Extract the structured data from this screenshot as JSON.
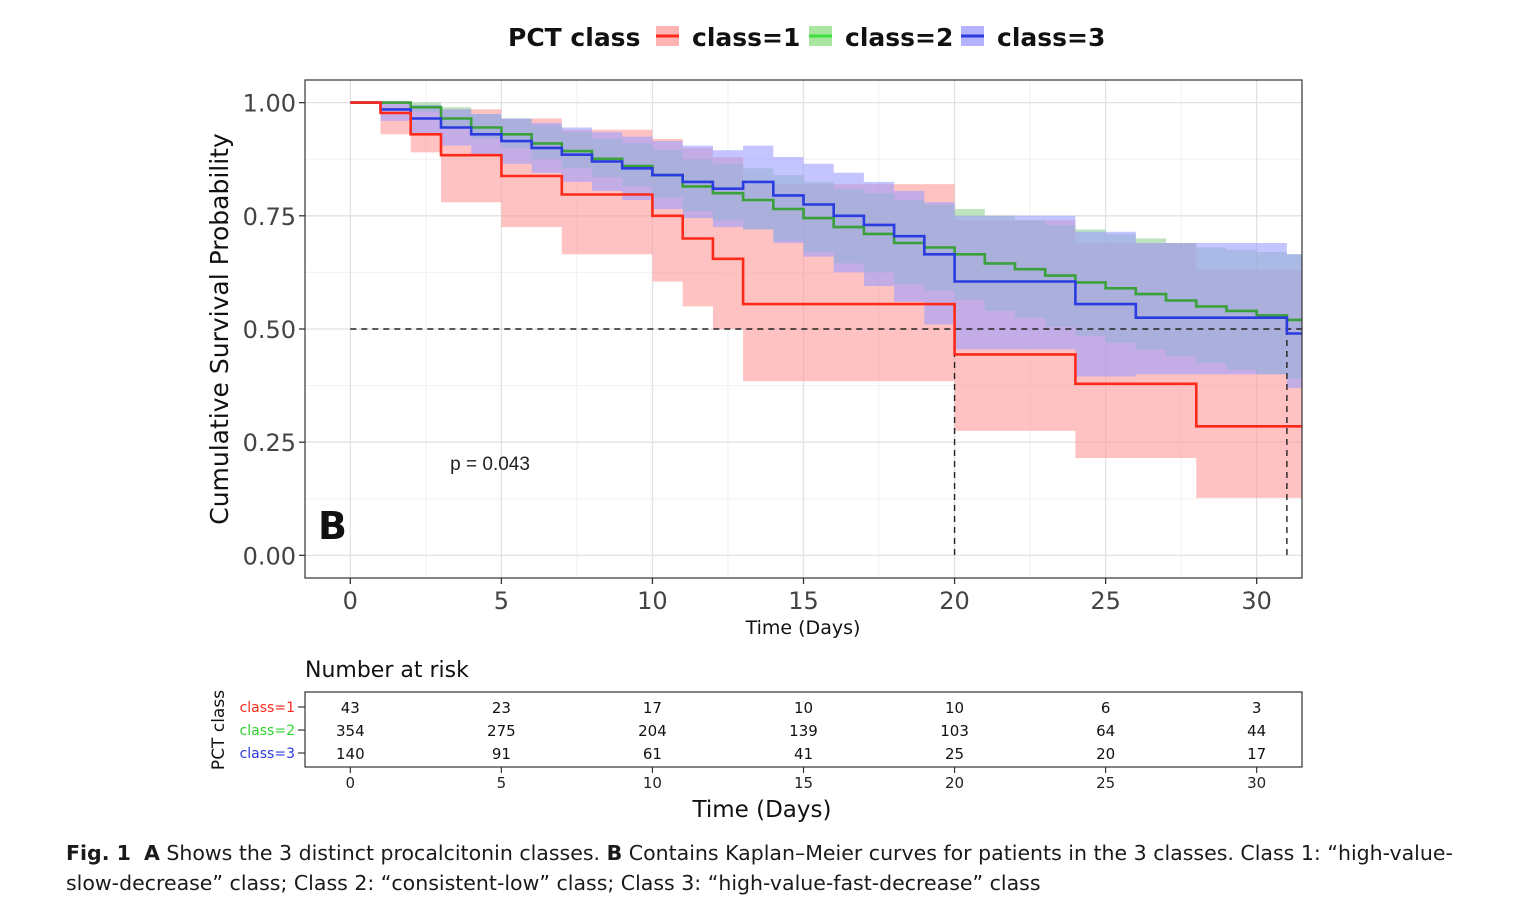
{
  "chart_data": {
    "type": "line",
    "subtype": "kaplan-meier",
    "panel_label": "B",
    "legend": {
      "title": "PCT class",
      "position": "top",
      "entries": [
        {
          "name": "class=1",
          "color": "#ff2a1a"
        },
        {
          "name": "class=2",
          "color": "#3aa03a"
        },
        {
          "name": "class=3",
          "color": "#2a3be0"
        }
      ]
    },
    "xlabel": "Time (Days)",
    "ylabel": "Cumulative Survival Probability",
    "xlim": [
      -1.5,
      31.5
    ],
    "ylim": [
      -0.05,
      1.05
    ],
    "xticks": [
      0,
      5,
      10,
      15,
      20,
      25,
      30
    ],
    "yticks": [
      0,
      0.25,
      0.5,
      0.75,
      1.0
    ],
    "ytick_labels": [
      "0.00",
      "0.25",
      "0.50",
      "0.75",
      "1.00"
    ],
    "grid": true,
    "annotation": "p = 0.043",
    "annotation_at": {
      "x": 4,
      "y": 0.2
    },
    "median_line": {
      "y": 0.5,
      "x_end": 31.5,
      "drops": [
        20,
        31
      ]
    },
    "series": [
      {
        "name": "class=1",
        "color": "#ff2a1a",
        "fill": "#ff9a9a",
        "x": [
          0,
          1,
          2,
          3,
          5,
          7,
          10,
          11,
          12,
          13,
          20,
          24,
          28,
          31.5
        ],
        "y": [
          1.0,
          0.977,
          0.93,
          0.884,
          0.838,
          0.797,
          0.75,
          0.7,
          0.655,
          0.555,
          0.444,
          0.379,
          0.285,
          0.285
        ],
        "lower": [
          1.0,
          0.93,
          0.89,
          0.78,
          0.725,
          0.665,
          0.605,
          0.55,
          0.5,
          0.385,
          0.275,
          0.215,
          0.127,
          0.127
        ],
        "upper": [
          1.0,
          1.0,
          0.99,
          0.985,
          0.965,
          0.94,
          0.92,
          0.9,
          0.88,
          0.82,
          0.74,
          0.69,
          0.63,
          0.63
        ]
      },
      {
        "name": "class=2",
        "color": "#3aa03a",
        "fill": "#93d193",
        "x": [
          0,
          2,
          3,
          4,
          5,
          6,
          7,
          8,
          9,
          10,
          11,
          12,
          13,
          14,
          15,
          16,
          17,
          18,
          19,
          20,
          21,
          22,
          23,
          24,
          25,
          26,
          27,
          28,
          29,
          30,
          31,
          31.5
        ],
        "y": [
          1.0,
          0.99,
          0.965,
          0.945,
          0.93,
          0.91,
          0.893,
          0.876,
          0.86,
          0.84,
          0.815,
          0.8,
          0.785,
          0.765,
          0.745,
          0.725,
          0.71,
          0.69,
          0.68,
          0.665,
          0.645,
          0.632,
          0.618,
          0.603,
          0.59,
          0.577,
          0.563,
          0.55,
          0.54,
          0.53,
          0.52,
          0.52
        ],
        "lower": [
          1.0,
          0.98,
          0.945,
          0.92,
          0.9,
          0.875,
          0.855,
          0.835,
          0.815,
          0.79,
          0.76,
          0.74,
          0.72,
          0.695,
          0.67,
          0.645,
          0.625,
          0.6,
          0.585,
          0.565,
          0.54,
          0.525,
          0.505,
          0.485,
          0.47,
          0.455,
          0.44,
          0.425,
          0.41,
          0.4,
          0.39,
          0.39
        ],
        "upper": [
          1.0,
          1.0,
          0.99,
          0.975,
          0.965,
          0.95,
          0.935,
          0.92,
          0.91,
          0.895,
          0.875,
          0.865,
          0.855,
          0.84,
          0.825,
          0.81,
          0.8,
          0.785,
          0.775,
          0.765,
          0.75,
          0.74,
          0.73,
          0.72,
          0.71,
          0.7,
          0.69,
          0.68,
          0.675,
          0.67,
          0.665,
          0.665
        ]
      },
      {
        "name": "class=3",
        "color": "#2a3be0",
        "fill": "#9d9dff",
        "x": [
          0,
          1,
          2,
          3,
          4,
          5,
          6,
          7,
          8,
          9,
          10,
          11,
          12,
          13,
          14,
          15,
          16,
          17,
          18,
          19,
          20,
          24,
          26,
          31,
          31.5
        ],
        "y": [
          1.0,
          0.985,
          0.965,
          0.945,
          0.93,
          0.915,
          0.9,
          0.885,
          0.87,
          0.855,
          0.84,
          0.825,
          0.81,
          0.825,
          0.795,
          0.775,
          0.75,
          0.73,
          0.705,
          0.665,
          0.605,
          0.555,
          0.525,
          0.49,
          0.49
        ],
        "lower": [
          1.0,
          0.96,
          0.93,
          0.905,
          0.885,
          0.865,
          0.845,
          0.825,
          0.805,
          0.785,
          0.765,
          0.745,
          0.725,
          0.72,
          0.69,
          0.66,
          0.625,
          0.595,
          0.56,
          0.51,
          0.455,
          0.395,
          0.4,
          0.37,
          0.37
        ],
        "upper": [
          1.0,
          1.0,
          0.995,
          0.985,
          0.975,
          0.965,
          0.955,
          0.945,
          0.935,
          0.925,
          0.915,
          0.905,
          0.895,
          0.905,
          0.88,
          0.865,
          0.845,
          0.825,
          0.805,
          0.78,
          0.75,
          0.715,
          0.69,
          0.665,
          0.665
        ]
      }
    ],
    "risk_table": {
      "title": "Number at risk",
      "ylabel": "PCT class",
      "xlabel": "Time (Days)",
      "times": [
        0,
        5,
        10,
        15,
        20,
        25,
        30
      ],
      "rows": [
        {
          "name": "class=1",
          "color": "#ff2a1a",
          "counts": [
            43,
            23,
            17,
            10,
            10,
            6,
            3
          ]
        },
        {
          "name": "class=2",
          "color": "#3aa03a",
          "counts": [
            354,
            275,
            204,
            139,
            103,
            64,
            44
          ]
        },
        {
          "name": "class=3",
          "color": "#2a3be0",
          "counts": [
            140,
            91,
            61,
            41,
            25,
            20,
            17
          ]
        }
      ]
    }
  },
  "caption": {
    "fig_label": "Fig. 1",
    "a_label": "A",
    "a_text": "Shows the 3 distinct procalcitonin classes.",
    "b_label": "B",
    "b_text": "Contains Kaplan–Meier curves for patients in the 3 classes. Class 1: “high-value-slow-decrease” class; Class 2: “consistent-low” class; Class 3: “high-value-fast-decrease” class"
  }
}
